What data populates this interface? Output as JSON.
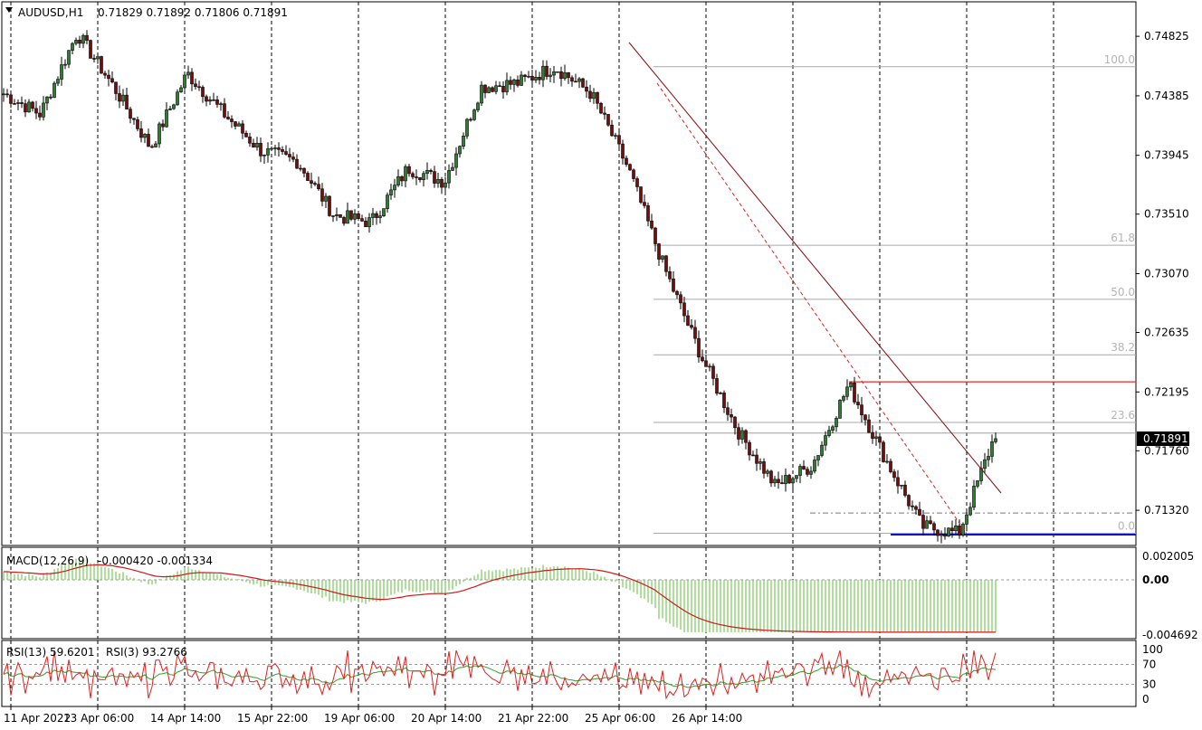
{
  "chart_data": {
    "type": "candlestick",
    "symbol_header": "AUDUSD,H1",
    "ohlc_header": "0.71829 0.71892 0.71806 0.71891",
    "current_price": "0.71891",
    "price_axis": {
      "range": [
        0.7106,
        0.7508
      ],
      "ticks": [
        "0.74825",
        "0.74385",
        "0.73945",
        "0.73510",
        "0.73070",
        "0.72635",
        "0.72195",
        "0.71760",
        "0.71320"
      ]
    },
    "time_axis": {
      "ticks": [
        "11 Apr 2022",
        "13 Apr 06:00",
        "14 Apr 14:00",
        "15 Apr 22:00",
        "19 Apr 06:00",
        "20 Apr 14:00",
        "21 Apr 22:00",
        "25 Apr 06:00",
        "26 Apr 14:00"
      ]
    },
    "fibonacci": [
      {
        "label": "100.0",
        "price": 0.746
      },
      {
        "label": "61.8",
        "price": 0.7328
      },
      {
        "label": "50.0",
        "price": 0.7288
      },
      {
        "label": "38.2",
        "price": 0.7247
      },
      {
        "label": "23.6",
        "price": 0.7197
      },
      {
        "label": "0.0",
        "price": 0.7115
      }
    ],
    "horizontal_lines": [
      {
        "name": "resistance",
        "price": 0.7227,
        "color": "#e8292e"
      },
      {
        "name": "support",
        "price": 0.7114,
        "color": "#1010c8"
      },
      {
        "name": "low-dashdot",
        "price": 0.713,
        "color": "#777777"
      },
      {
        "name": "bid",
        "price": 0.71891,
        "color": "#a0a0a0"
      }
    ],
    "key_closes": [
      0.744,
      0.7425,
      0.7485,
      0.7445,
      0.74,
      0.7455,
      0.7425,
      0.7398,
      0.739,
      0.735,
      0.7345,
      0.7385,
      0.7375,
      0.7445,
      0.7448,
      0.746,
      0.744,
      0.7385,
      0.731,
      0.7245,
      0.719,
      0.715,
      0.7165,
      0.7225,
      0.717,
      0.712,
      0.7115,
      0.7189
    ],
    "macd": {
      "label": "MACD(12,26,9)",
      "values": "-0.000420 -0.001334",
      "range": [
        -0.004692,
        0.002005
      ],
      "ticks": [
        "0.002005",
        "0.00",
        "-0.004692"
      ]
    },
    "rsi": {
      "label": "RSI(13) 59.6201",
      "label2": "RSI(3) 93.2766",
      "range": [
        0,
        100
      ],
      "ticks": [
        "100",
        "70",
        "30",
        "0"
      ],
      "last_slow": 59.6201,
      "last_fast": 93.2766
    },
    "colors": {
      "bull": "#2e7d32",
      "bear": "#7a0a0a",
      "grid": "#000000",
      "signal": "#d0181a",
      "histogram": "#7ac85a",
      "rsi_slow": "#2ca02c",
      "rsi_fast": "#e02020"
    }
  }
}
